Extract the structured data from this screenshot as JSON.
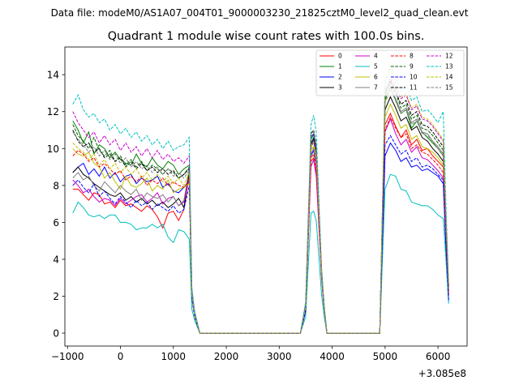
{
  "suptitle": "Data file: modeM0/AS1A07_004T01_9000003230_21825cztM0_level2_quad_clean.evt",
  "chart_data": {
    "type": "line",
    "title": "Quadrant 1 module wise count rates with 100.0s bins.",
    "xlabel": "",
    "ylabel": "",
    "x_offset_label": "+3.085e8",
    "xlim": [
      -1050,
      6550
    ],
    "ylim": [
      -0.7,
      15.5
    ],
    "xticks": [
      -1000,
      0,
      1000,
      2000,
      3000,
      4000,
      5000,
      6000
    ],
    "xtick_labels": [
      "−1000",
      "0",
      "1000",
      "2000",
      "3000",
      "4000",
      "5000",
      "6000"
    ],
    "yticks": [
      0,
      2,
      4,
      6,
      8,
      10,
      12,
      14
    ],
    "ytick_labels": [
      "0",
      "2",
      "4",
      "6",
      "8",
      "10",
      "12",
      "14"
    ],
    "grid": false,
    "legend_position": "top-right",
    "x": [
      -900,
      -800,
      -700,
      -600,
      -500,
      -400,
      -300,
      -200,
      -100,
      0,
      100,
      200,
      300,
      400,
      500,
      600,
      700,
      800,
      900,
      1000,
      1100,
      1200,
      1300,
      1350,
      1400,
      1500,
      3400,
      3500,
      3600,
      3650,
      3700,
      3800,
      3850,
      3900,
      4900,
      5000,
      5100,
      5200,
      5300,
      5400,
      5500,
      5600,
      5700,
      5800,
      5900,
      6000,
      6100,
      6150,
      6200
    ],
    "series": [
      {
        "name": "0",
        "color": "#ff0000",
        "dash": "solid",
        "values": [
          7.8,
          7.8,
          7.5,
          7.2,
          7.6,
          7.5,
          7.0,
          7.1,
          6.8,
          7.2,
          6.9,
          7.0,
          6.8,
          6.6,
          6.9,
          6.7,
          6.3,
          5.7,
          6.5,
          6.6,
          6.1,
          6.7,
          8.6,
          2.0,
          1.0,
          0,
          0,
          1.3,
          9.3,
          9.5,
          8.7,
          3.0,
          1.2,
          0,
          0,
          11.3,
          11.9,
          11.2,
          10.6,
          11.0,
          10.2,
          10.5,
          9.9,
          10.0,
          9.6,
          9.3,
          9.0,
          5.2,
          2.1
        ]
      },
      {
        "name": "1",
        "color": "#008000",
        "dash": "solid",
        "values": [
          11.5,
          11.0,
          10.3,
          10.9,
          9.7,
          10.2,
          10.0,
          9.5,
          9.8,
          9.4,
          9.2,
          9.1,
          9.7,
          9.2,
          9.0,
          9.5,
          9.1,
          8.9,
          9.3,
          9.1,
          8.6,
          8.9,
          9.1,
          2.3,
          1.1,
          0,
          0,
          1.5,
          10.3,
          10.6,
          9.9,
          3.4,
          1.4,
          0,
          0,
          12.6,
          13.4,
          12.6,
          11.9,
          12.1,
          11.1,
          11.5,
          10.9,
          10.6,
          10.3,
          10.0,
          9.6,
          6.0,
          2.6
        ]
      },
      {
        "name": "2",
        "color": "#0000ff",
        "dash": "solid",
        "values": [
          8.7,
          9.0,
          9.2,
          8.6,
          8.9,
          8.5,
          9.0,
          8.4,
          8.7,
          8.2,
          8.5,
          8.6,
          8.1,
          8.4,
          8.2,
          8.3,
          8.5,
          7.9,
          8.1,
          7.7,
          7.6,
          7.9,
          8.2,
          1.9,
          1.0,
          0,
          0,
          1.2,
          9.6,
          9.9,
          9.2,
          3.1,
          1.3,
          0,
          0,
          9.6,
          10.3,
          9.9,
          9.3,
          9.5,
          9.0,
          9.1,
          8.8,
          8.9,
          8.7,
          8.5,
          8.1,
          4.6,
          1.7
        ]
      },
      {
        "name": "3",
        "color": "#000000",
        "dash": "solid",
        "values": [
          8.7,
          9.0,
          8.6,
          8.4,
          8.1,
          7.9,
          7.7,
          7.5,
          7.4,
          7.6,
          7.2,
          7.4,
          7.1,
          7.3,
          7.0,
          7.2,
          6.9,
          7.1,
          6.8,
          7.0,
          7.3,
          6.8,
          8.8,
          2.1,
          1.0,
          0,
          0,
          1.4,
          10.2,
          10.5,
          9.6,
          3.3,
          1.3,
          0,
          0,
          12.1,
          12.8,
          12.2,
          11.5,
          11.7,
          11.0,
          11.2,
          10.6,
          10.4,
          10.0,
          9.7,
          9.3,
          5.6,
          2.3
        ]
      },
      {
        "name": "4",
        "color": "#cc00cc",
        "dash": "solid",
        "values": [
          8.3,
          8.0,
          7.6,
          7.8,
          7.4,
          7.1,
          7.3,
          7.2,
          6.9,
          7.3,
          7.0,
          7.2,
          7.4,
          7.5,
          7.1,
          7.3,
          7.6,
          7.0,
          7.3,
          7.4,
          6.9,
          7.1,
          8.4,
          2.0,
          1.0,
          0,
          0,
          1.3,
          9.0,
          9.4,
          8.5,
          3.0,
          1.2,
          0,
          0,
          10.9,
          11.6,
          10.8,
          10.2,
          10.5,
          9.8,
          10.1,
          9.5,
          9.4,
          9.1,
          8.8,
          8.4,
          5.0,
          2.0
        ]
      },
      {
        "name": "5",
        "color": "#00bfbf",
        "dash": "solid",
        "values": [
          6.5,
          7.1,
          6.8,
          6.4,
          6.3,
          6.4,
          6.2,
          6.4,
          6.4,
          6.0,
          6.0,
          5.9,
          5.6,
          5.7,
          5.7,
          5.9,
          5.7,
          5.9,
          5.2,
          4.9,
          5.6,
          5.5,
          5.1,
          1.3,
          0.7,
          0,
          0,
          0.9,
          6.5,
          6.6,
          6.1,
          2.1,
          0.9,
          0,
          0,
          7.8,
          8.6,
          8.5,
          7.8,
          7.7,
          7.1,
          7.0,
          6.9,
          6.9,
          6.7,
          6.4,
          6.2,
          4.0,
          1.6
        ]
      },
      {
        "name": "6",
        "color": "#bfbf00",
        "dash": "solid",
        "values": [
          10.0,
          9.7,
          9.6,
          9.8,
          9.2,
          9.0,
          8.4,
          8.7,
          8.2,
          7.8,
          8.5,
          8.0,
          7.9,
          8.1,
          8.4,
          7.7,
          8.0,
          7.8,
          8.3,
          7.6,
          7.8,
          7.9,
          8.1,
          2.0,
          1.0,
          0,
          0,
          1.4,
          9.9,
          10.1,
          9.4,
          3.2,
          1.3,
          0,
          0,
          11.7,
          12.4,
          11.8,
          11.1,
          11.3,
          10.5,
          10.7,
          10.1,
          10.0,
          9.8,
          9.5,
          9.1,
          5.4,
          2.2
        ]
      },
      {
        "name": "7",
        "color": "#808080",
        "dash": "solid",
        "values": [
          8.4,
          8.7,
          8.3,
          8.5,
          8.0,
          7.7,
          8.2,
          7.9,
          7.6,
          8.0,
          7.7,
          7.5,
          7.8,
          7.2,
          7.6,
          7.4,
          7.3,
          7.5,
          7.1,
          7.4,
          6.9,
          7.2,
          8.9,
          2.1,
          1.1,
          0,
          0,
          1.4,
          9.7,
          10.0,
          9.3,
          3.2,
          1.3,
          0,
          0,
          12.8,
          13.3,
          12.7,
          12.0,
          12.2,
          11.4,
          11.6,
          10.9,
          10.8,
          10.4,
          10.1,
          9.7,
          5.8,
          2.4
        ]
      },
      {
        "name": "8",
        "color": "#ff0000",
        "dash": "dashed",
        "values": [
          9.6,
          9.9,
          9.7,
          9.3,
          9.5,
          9.0,
          9.2,
          8.9,
          8.6,
          8.8,
          8.3,
          8.5,
          8.2,
          8.5,
          8.0,
          8.3,
          8.1,
          8.4,
          8.0,
          8.2,
          8.0,
          7.9,
          8.3,
          2.0,
          1.0,
          0,
          0,
          1.3,
          9.5,
          9.7,
          9.0,
          3.1,
          1.3,
          0,
          0,
          11.0,
          11.7,
          11.1,
          10.6,
          10.8,
          10.0,
          10.2,
          9.8,
          9.7,
          9.4,
          9.1,
          8.7,
          5.1,
          2.1
        ]
      },
      {
        "name": "9",
        "color": "#006400",
        "dash": "dashed",
        "values": [
          11.3,
          10.7,
          10.4,
          10.0,
          10.6,
          9.9,
          9.6,
          9.9,
          9.3,
          9.6,
          9.1,
          9.4,
          9.0,
          9.3,
          8.8,
          9.1,
          8.9,
          8.6,
          8.9,
          8.7,
          8.4,
          8.6,
          9.0,
          2.2,
          1.1,
          0,
          0,
          1.5,
          10.5,
          10.8,
          10.0,
          3.4,
          1.4,
          0,
          0,
          12.9,
          13.6,
          13.0,
          12.2,
          12.4,
          11.6,
          11.8,
          11.1,
          11.0,
          10.7,
          10.3,
          9.9,
          5.9,
          2.5
        ]
      },
      {
        "name": "10",
        "color": "#0000ff",
        "dash": "dashed",
        "values": [
          8.0,
          8.3,
          7.9,
          7.6,
          8.1,
          7.4,
          7.7,
          7.3,
          7.0,
          7.4,
          7.1,
          6.8,
          7.2,
          6.9,
          7.1,
          6.7,
          7.0,
          6.8,
          6.6,
          6.9,
          6.5,
          6.7,
          8.0,
          1.9,
          0.9,
          0,
          0,
          1.2,
          10.5,
          10.8,
          9.9,
          3.3,
          1.3,
          0,
          0,
          10.2,
          10.7,
          10.2,
          9.7,
          9.9,
          9.3,
          9.5,
          9.0,
          9.1,
          8.9,
          8.6,
          8.3,
          4.8,
          1.8
        ]
      },
      {
        "name": "11",
        "color": "#000000",
        "dash": "dashed",
        "values": [
          11.0,
          10.4,
          10.1,
          10.3,
          9.8,
          10.0,
          9.5,
          9.7,
          9.3,
          9.5,
          9.0,
          9.3,
          8.9,
          9.2,
          8.8,
          9.0,
          8.7,
          8.9,
          8.6,
          8.8,
          8.4,
          8.6,
          8.9,
          2.2,
          1.1,
          0,
          0,
          1.5,
          10.8,
          11.0,
          10.2,
          3.4,
          1.4,
          0,
          0,
          13.0,
          13.7,
          13.1,
          12.4,
          12.6,
          11.8,
          12.0,
          11.3,
          11.2,
          10.9,
          10.5,
          10.1,
          6.0,
          2.5
        ]
      },
      {
        "name": "12",
        "color": "#cc00cc",
        "dash": "dashed",
        "values": [
          12.0,
          11.4,
          11.0,
          10.6,
          10.9,
          10.3,
          10.7,
          10.2,
          10.5,
          9.9,
          10.3,
          9.8,
          10.1,
          9.6,
          10.0,
          9.5,
          9.9,
          9.4,
          9.7,
          9.3,
          9.5,
          9.2,
          9.6,
          2.3,
          1.2,
          0,
          0,
          1.6,
          10.0,
          10.4,
          9.6,
          3.3,
          1.4,
          0,
          0,
          13.1,
          13.8,
          13.3,
          12.7,
          12.9,
          12.1,
          12.3,
          11.6,
          11.5,
          11.2,
          10.8,
          10.4,
          6.2,
          2.6
        ]
      },
      {
        "name": "13",
        "color": "#00bfbf",
        "dash": "dashed",
        "values": [
          12.4,
          12.9,
          12.1,
          11.7,
          11.9,
          11.4,
          11.6,
          11.0,
          11.3,
          10.8,
          11.1,
          10.6,
          10.9,
          10.4,
          10.7,
          10.2,
          10.5,
          10.0,
          10.4,
          9.9,
          10.1,
          10.2,
          10.6,
          2.5,
          1.2,
          0,
          0,
          1.7,
          11.3,
          11.8,
          10.9,
          3.6,
          1.5,
          0,
          0,
          13.7,
          14.3,
          13.8,
          13.1,
          13.4,
          12.6,
          12.8,
          12.0,
          12.1,
          11.8,
          11.4,
          12.0,
          7.0,
          2.8
        ]
      },
      {
        "name": "14",
        "color": "#bfbf00",
        "dash": "dashed",
        "values": [
          10.3,
          10.0,
          9.8,
          9.4,
          9.7,
          9.1,
          9.4,
          8.9,
          9.2,
          8.7,
          9.0,
          8.6,
          8.9,
          8.4,
          8.7,
          8.3,
          8.6,
          8.2,
          8.5,
          8.1,
          8.4,
          8.0,
          8.7,
          2.1,
          1.0,
          0,
          0,
          1.4,
          10.1,
          10.3,
          9.6,
          3.2,
          1.3,
          0,
          0,
          13.4,
          14.6,
          13.5,
          12.8,
          13.0,
          12.2,
          12.4,
          11.7,
          11.6,
          11.3,
          10.9,
          10.5,
          6.3,
          2.6
        ]
      },
      {
        "name": "15",
        "color": "#808080",
        "dash": "dashed",
        "values": [
          10.9,
          10.5,
          10.2,
          9.8,
          10.1,
          9.6,
          9.9,
          9.4,
          9.7,
          9.2,
          9.5,
          9.0,
          9.3,
          8.9,
          9.1,
          8.7,
          9.0,
          8.6,
          8.9,
          8.5,
          8.7,
          8.4,
          8.8,
          2.1,
          1.1,
          0,
          0,
          1.5,
          10.6,
          10.9,
          10.1,
          3.4,
          1.4,
          0,
          0,
          12.5,
          13.2,
          12.6,
          11.9,
          12.1,
          11.3,
          11.5,
          10.8,
          10.7,
          10.4,
          10.0,
          9.6,
          5.7,
          2.4
        ]
      }
    ]
  }
}
